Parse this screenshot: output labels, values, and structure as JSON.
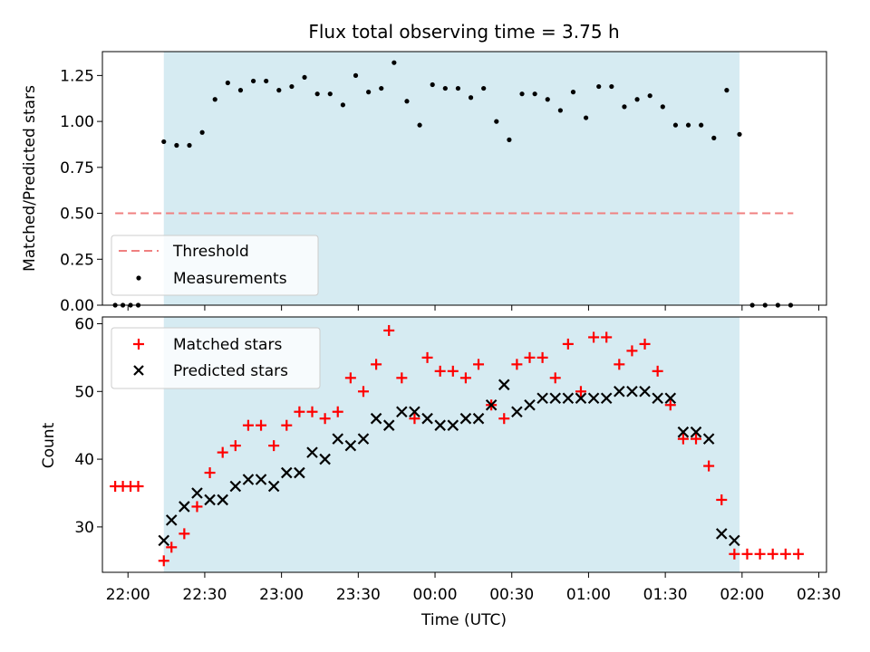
{
  "chart_data": [
    {
      "type": "scatter",
      "title": "Flux total observing time = 3.75 h",
      "xlabel": "",
      "ylabel": "Matched/Predicted stars",
      "xlim": [
        "21:50",
        "02:33"
      ],
      "ylim": [
        0,
        1.38
      ],
      "y_ticks": [
        0.0,
        0.25,
        0.5,
        0.75,
        1.0,
        1.25
      ],
      "y_tick_labels": [
        "0.00",
        "0.25",
        "0.50",
        "0.75",
        "1.00",
        "1.25"
      ],
      "shaded_region": {
        "from": "22:14",
        "to": "01:59",
        "color": "#add8e6"
      },
      "legend": {
        "position": "lower-left",
        "entries": [
          "Threshold",
          "Measurements"
        ]
      },
      "series": [
        {
          "name": "Threshold",
          "style": "dashed-line",
          "color": "#f08080",
          "x": [
            "21:55",
            "02:20"
          ],
          "y": [
            0.5,
            0.5
          ]
        },
        {
          "name": "Measurements",
          "style": "dot",
          "color": "#000000",
          "x": [
            "21:55",
            "21:58",
            "22:01",
            "22:04",
            "22:14",
            "22:19",
            "22:24",
            "22:29",
            "22:34",
            "22:39",
            "22:44",
            "22:49",
            "22:54",
            "22:59",
            "23:04",
            "23:09",
            "23:14",
            "23:19",
            "23:24",
            "23:29",
            "23:34",
            "23:39",
            "23:44",
            "23:49",
            "23:54",
            "23:59",
            "00:04",
            "00:09",
            "00:14",
            "00:19",
            "00:24",
            "00:29",
            "00:34",
            "00:39",
            "00:44",
            "00:49",
            "00:54",
            "00:59",
            "01:04",
            "01:09",
            "01:14",
            "01:19",
            "01:24",
            "01:29",
            "01:34",
            "01:39",
            "01:44",
            "01:49",
            "01:54",
            "01:59",
            "02:04",
            "02:09",
            "02:14",
            "02:19"
          ],
          "y": [
            0.0,
            0.0,
            0.0,
            0.0,
            0.89,
            0.87,
            0.87,
            0.94,
            1.12,
            1.21,
            1.17,
            1.22,
            1.22,
            1.17,
            1.19,
            1.24,
            1.15,
            1.15,
            1.09,
            1.25,
            1.16,
            1.18,
            1.32,
            1.11,
            0.98,
            1.2,
            1.18,
            1.18,
            1.13,
            1.18,
            1.0,
            0.9,
            1.15,
            1.15,
            1.12,
            1.06,
            1.16,
            1.02,
            1.19,
            1.19,
            1.08,
            1.12,
            1.14,
            1.08,
            0.98,
            0.98,
            0.98,
            0.91,
            1.17,
            0.93,
            0.0,
            0.0,
            0.0,
            0.0
          ]
        }
      ]
    },
    {
      "type": "scatter",
      "title": "",
      "xlabel": "Time (UTC)",
      "ylabel": "Count",
      "xlim": [
        "21:50",
        "02:33"
      ],
      "ylim": [
        23.3,
        61
      ],
      "y_ticks": [
        30,
        40,
        50,
        60
      ],
      "x_ticks": [
        "22:00",
        "22:30",
        "23:00",
        "23:30",
        "00:00",
        "00:30",
        "01:00",
        "01:30",
        "02:00",
        "02:30"
      ],
      "shaded_region": {
        "from": "22:14",
        "to": "01:59",
        "color": "#add8e6"
      },
      "legend": {
        "position": "upper-left",
        "entries": [
          "Matched stars",
          "Predicted stars"
        ]
      },
      "series": [
        {
          "name": "Matched stars",
          "marker": "+",
          "color": "#ff0000",
          "x": [
            "21:55",
            "21:58",
            "22:01",
            "22:04",
            "22:14",
            "22:17",
            "22:22",
            "22:27",
            "22:32",
            "22:37",
            "22:42",
            "22:47",
            "22:52",
            "22:57",
            "23:02",
            "23:07",
            "23:12",
            "23:17",
            "23:22",
            "23:27",
            "23:32",
            "23:37",
            "23:42",
            "23:47",
            "23:52",
            "23:57",
            "00:02",
            "00:07",
            "00:12",
            "00:17",
            "00:22",
            "00:27",
            "00:32",
            "00:37",
            "00:42",
            "00:47",
            "00:52",
            "00:57",
            "01:02",
            "01:07",
            "01:12",
            "01:17",
            "01:22",
            "01:27",
            "01:32",
            "01:37",
            "01:42",
            "01:47",
            "01:52",
            "01:57",
            "02:02",
            "02:07",
            "02:12",
            "02:17",
            "02:22"
          ],
          "y": [
            36,
            36,
            36,
            36,
            25,
            27,
            29,
            33,
            38,
            41,
            42,
            45,
            45,
            42,
            45,
            47,
            47,
            46,
            47,
            52,
            50,
            54,
            59,
            52,
            46,
            55,
            53,
            53,
            52,
            54,
            48,
            46,
            54,
            55,
            55,
            52,
            57,
            50,
            58,
            58,
            54,
            56,
            57,
            53,
            48,
            43,
            43,
            39,
            34,
            26,
            26,
            26,
            26,
            26,
            26
          ]
        },
        {
          "name": "Predicted stars",
          "marker": "x",
          "color": "#000000",
          "x": [
            "22:14",
            "22:17",
            "22:22",
            "22:27",
            "22:32",
            "22:37",
            "22:42",
            "22:47",
            "22:52",
            "22:57",
            "23:02",
            "23:07",
            "23:12",
            "23:17",
            "23:22",
            "23:27",
            "23:32",
            "23:37",
            "23:42",
            "23:47",
            "23:52",
            "23:57",
            "00:02",
            "00:07",
            "00:12",
            "00:17",
            "00:22",
            "00:27",
            "00:32",
            "00:37",
            "00:42",
            "00:47",
            "00:52",
            "00:57",
            "01:02",
            "01:07",
            "01:12",
            "01:17",
            "01:22",
            "01:27",
            "01:32",
            "01:37",
            "01:42",
            "01:47",
            "01:52",
            "01:57"
          ],
          "y": [
            28,
            31,
            33,
            35,
            34,
            34,
            36,
            37,
            37,
            36,
            38,
            38,
            41,
            40,
            43,
            42,
            43,
            46,
            45,
            47,
            47,
            46,
            45,
            45,
            46,
            46,
            48,
            51,
            47,
            48,
            49,
            49,
            49,
            49,
            49,
            49,
            50,
            50,
            50,
            49,
            49,
            44,
            44,
            43,
            29,
            28
          ]
        }
      ]
    }
  ]
}
